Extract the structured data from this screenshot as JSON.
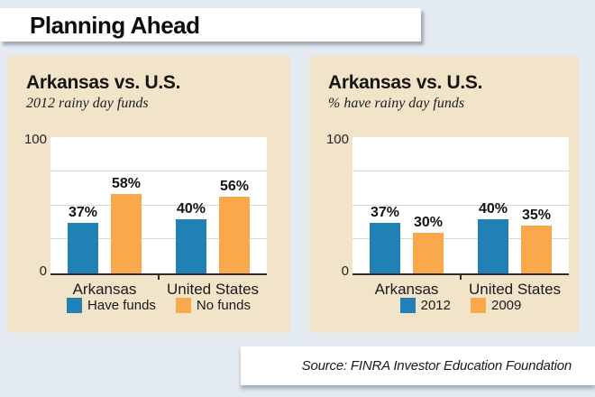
{
  "page": {
    "title": "Planning Ahead",
    "source": "Source: FINRA Investor Education Foundation",
    "colors": {
      "background": "#e3eaf2",
      "panel": "#f2e4c9",
      "blue": "#2181b5",
      "orange": "#f9a84c"
    }
  },
  "chart_data": [
    {
      "type": "bar",
      "title": "Arkansas vs. U.S.",
      "subtitle": "2012 rainy day funds",
      "categories": [
        "Arkansas",
        "United States"
      ],
      "series": [
        {
          "name": "Have funds",
          "color": "#2181b5",
          "values": [
            37,
            40
          ]
        },
        {
          "name": "No funds",
          "color": "#f9a84c",
          "values": [
            58,
            56
          ]
        }
      ],
      "value_labels": [
        [
          "37%",
          "40%"
        ],
        [
          "58%",
          "56%"
        ]
      ],
      "value_suffix": "%",
      "ylim": [
        0,
        100
      ],
      "y_axis": {
        "max_label": "100",
        "min_label": "0"
      },
      "gridlines": [
        25,
        50,
        75
      ],
      "grid": true,
      "legend_position": "bottom"
    },
    {
      "type": "bar",
      "title": "Arkansas vs. U.S.",
      "subtitle": "% have rainy day funds",
      "categories": [
        "Arkansas",
        "United States"
      ],
      "series": [
        {
          "name": "2012",
          "color": "#2181b5",
          "values": [
            37,
            40
          ]
        },
        {
          "name": "2009",
          "color": "#f9a84c",
          "values": [
            30,
            35
          ]
        }
      ],
      "value_labels": [
        [
          "37%",
          "40%"
        ],
        [
          "30%",
          "35%"
        ]
      ],
      "value_suffix": "%",
      "ylim": [
        0,
        100
      ],
      "y_axis": {
        "max_label": "100",
        "min_label": "0"
      },
      "gridlines": [
        25,
        50,
        75
      ],
      "grid": true,
      "legend_position": "bottom"
    }
  ]
}
